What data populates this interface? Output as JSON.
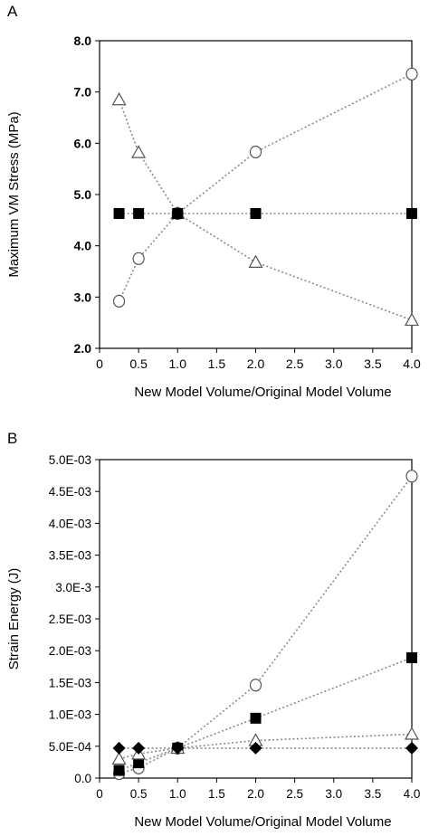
{
  "chart_data": [
    {
      "panel_label": "A",
      "type": "scatter",
      "xlabel": "New Model Volume/Original Model Volume",
      "ylabel": "Maximum VM Stress (MPa)",
      "xlim": [
        0,
        4.0
      ],
      "ylim": [
        2.0,
        8.0
      ],
      "x_ticks": [
        "0",
        "0.5",
        "1.0",
        "1.5",
        "2.0",
        "2.5",
        "3.0",
        "3.5",
        "4.0"
      ],
      "x_tick_values": [
        0,
        0.5,
        1.0,
        1.5,
        2.0,
        2.5,
        3.0,
        3.5,
        4.0
      ],
      "y_ticks": [
        "2.0",
        "3.0",
        "4.0",
        "5.0",
        "6.0",
        "7.0",
        "8.0"
      ],
      "y_tick_values": [
        2.0,
        3.0,
        4.0,
        5.0,
        6.0,
        7.0,
        8.0
      ],
      "grid": false,
      "legend": "none",
      "series": [
        {
          "marker": "triangle",
          "x": [
            0.25,
            0.5,
            1.0,
            2.0,
            4.0
          ],
          "y": [
            6.85,
            5.82,
            4.63,
            3.68,
            2.55
          ]
        },
        {
          "marker": "circle",
          "x": [
            0.25,
            0.5,
            1.0,
            2.0,
            4.0
          ],
          "y": [
            2.92,
            3.75,
            4.63,
            5.83,
            7.35
          ]
        },
        {
          "marker": "square",
          "x": [
            0.25,
            0.5,
            1.0,
            2.0,
            4.0
          ],
          "y": [
            4.63,
            4.63,
            4.63,
            4.63,
            4.63
          ]
        }
      ]
    },
    {
      "panel_label": "B",
      "type": "scatter",
      "xlabel": "New Model Volume/Original Model Volume",
      "ylabel": "Strain Energy (J)",
      "xlim": [
        0,
        4.0
      ],
      "ylim": [
        0,
        0.005
      ],
      "x_ticks": [
        "0",
        "0.5",
        "1.0",
        "1.5",
        "2.0",
        "2.5",
        "3.0",
        "3.5",
        "4.0"
      ],
      "x_tick_values": [
        0,
        0.5,
        1.0,
        1.5,
        2.0,
        2.5,
        3.0,
        3.5,
        4.0
      ],
      "y_ticks": [
        "0.0",
        "5.0E-04",
        "1.0E-03",
        "1.5E-03",
        "2.0E-03",
        "2.5E-03",
        "3.0E-3",
        "3.5E-03",
        "4.0E-03",
        "4.5E-03",
        "5.0E-03"
      ],
      "y_tick_values": [
        0,
        0.0005,
        0.001,
        0.0015,
        0.002,
        0.0025,
        0.003,
        0.0035,
        0.004,
        0.0045,
        0.005
      ],
      "grid": false,
      "legend": "none",
      "series": [
        {
          "marker": "circle",
          "x": [
            0.25,
            0.5,
            1.0,
            2.0,
            4.0
          ],
          "y": [
            7e-05,
            0.00016,
            0.00047,
            0.00146,
            0.00474
          ]
        },
        {
          "marker": "square",
          "x": [
            0.25,
            0.5,
            1.0,
            2.0,
            4.0
          ],
          "y": [
            0.00012,
            0.00024,
            0.00047,
            0.00094,
            0.00189
          ]
        },
        {
          "marker": "triangle",
          "x": [
            0.25,
            0.5,
            1.0,
            2.0,
            4.0
          ],
          "y": [
            0.0003,
            0.00038,
            0.00047,
            0.00059,
            0.00069
          ]
        },
        {
          "marker": "diamond",
          "x": [
            0.25,
            0.5,
            1.0,
            2.0,
            4.0
          ],
          "y": [
            0.00047,
            0.00047,
            0.00047,
            0.00047,
            0.00047
          ]
        }
      ]
    }
  ]
}
